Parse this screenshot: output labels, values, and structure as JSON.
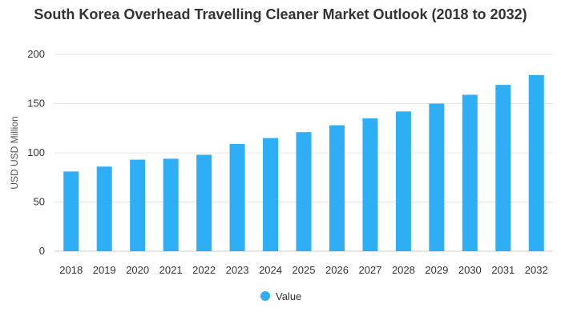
{
  "chart_data": {
    "type": "bar",
    "title": "South Korea Overhead Travelling Cleaner Market Outlook (2018 to 2032)",
    "xlabel": "",
    "ylabel": "USD USD Million",
    "ylim": [
      0,
      200
    ],
    "yticks": [
      0,
      50,
      100,
      150,
      200
    ],
    "grid": true,
    "legend_position": "bottom",
    "categories": [
      "2018",
      "2019",
      "2020",
      "2021",
      "2022",
      "2023",
      "2024",
      "2025",
      "2026",
      "2027",
      "2028",
      "2029",
      "2030",
      "2031",
      "2032"
    ],
    "series": [
      {
        "name": "Value",
        "color": "#2eaef5",
        "values": [
          81,
          86,
          93,
          94,
          98,
          109,
          115,
          121,
          128,
          135,
          142,
          150,
          159,
          169,
          179
        ]
      }
    ]
  }
}
